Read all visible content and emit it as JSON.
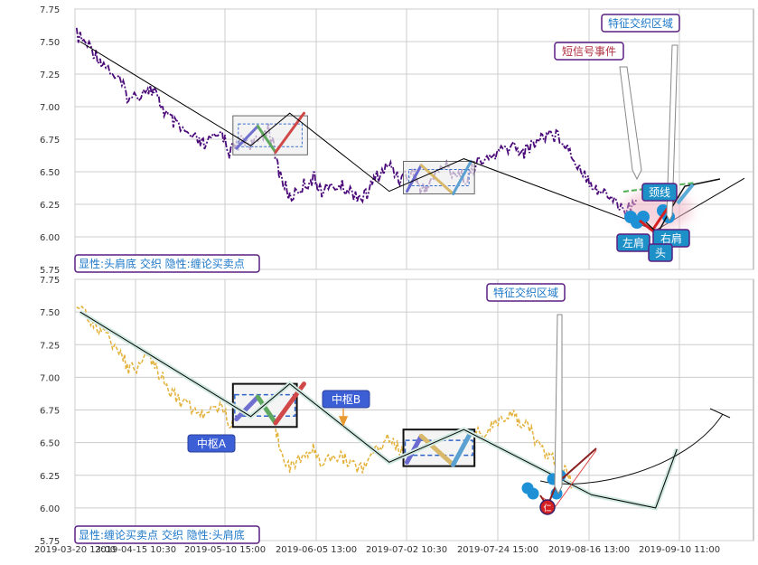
{
  "colors": {
    "upper_price": "#4b0a7a",
    "lower_price": "#e3b23c",
    "trend": "#000000",
    "grid": "#cccccc",
    "label_bg": "#1e90c8",
    "label_border": "#5a1e82",
    "zhongshu_bg": "#3d5fd6",
    "bubble": "#1e90d6",
    "signal_red": "#d42020"
  },
  "chart_data": [
    {
      "type": "line",
      "panel": "upper",
      "title": "",
      "ylim": [
        5.75,
        7.75
      ],
      "yticks": [
        "7.75",
        "7.50",
        "7.25",
        "7.00",
        "6.75",
        "6.50",
        "6.25",
        "6.00",
        "5.75"
      ],
      "x_domain": [
        "2019-03-20 13:00",
        "2019-09-27 13:00"
      ],
      "grid": true,
      "legend_box": "显性:头肩底 交织 隐性:缠论买卖点",
      "price_series": {
        "x": [
          "2019-03-21",
          "2019-03-25",
          "2019-03-28",
          "2019-04-02",
          "2019-04-05",
          "2019-04-10",
          "2019-04-12",
          "2019-04-15",
          "2019-04-18",
          "2019-04-23",
          "2019-04-26",
          "2019-05-01",
          "2019-05-03",
          "2019-05-07",
          "2019-05-10",
          "2019-05-14",
          "2019-05-17",
          "2019-05-20",
          "2019-05-24",
          "2019-05-27",
          "2019-05-29",
          "2019-06-03",
          "2019-06-06",
          "2019-06-10",
          "2019-06-13",
          "2019-06-17",
          "2019-06-20",
          "2019-06-24",
          "2019-06-26",
          "2019-06-28",
          "2019-07-02",
          "2019-07-05",
          "2019-07-09",
          "2019-07-11",
          "2019-07-15",
          "2019-07-18",
          "2019-07-22",
          "2019-07-25",
          "2019-07-29",
          "2019-08-01",
          "2019-08-05",
          "2019-08-08",
          "2019-08-12",
          "2019-08-15",
          "2019-08-19",
          "2019-08-22",
          "2019-08-26"
        ],
        "y": [
          7.55,
          7.45,
          7.35,
          7.2,
          7.05,
          7.15,
          7.1,
          6.95,
          6.85,
          6.75,
          6.7,
          6.8,
          6.65,
          6.75,
          6.7,
          6.85,
          6.5,
          6.3,
          6.4,
          6.45,
          6.35,
          6.4,
          6.35,
          6.3,
          6.45,
          6.55,
          6.45,
          6.5,
          6.35,
          6.4,
          6.55,
          6.5,
          6.45,
          6.55,
          6.6,
          6.65,
          6.7,
          6.65,
          6.75,
          6.8,
          6.75,
          6.6,
          6.45,
          6.35,
          6.3,
          6.2,
          6.25
        ]
      },
      "trend_points": {
        "x": [
          "2019-03-22",
          "2019-05-09",
          "2019-05-20",
          "2019-06-17",
          "2019-07-08",
          "2019-08-31",
          "2019-09-25"
        ],
        "y": [
          7.5,
          6.7,
          6.95,
          6.35,
          6.6,
          6.05,
          6.45
        ]
      },
      "zhongshu_boxes": [
        {
          "x0": "2019-05-04",
          "x1": "2019-05-25",
          "y0": 6.63,
          "y1": 6.93
        },
        {
          "x0": "2019-06-21",
          "x1": "2019-07-11",
          "y0": 6.33,
          "y1": 6.58
        }
      ],
      "annotations": {
        "feature_zone": "特征交织区域",
        "short_signal": "短信号事件",
        "neckline": "颈线",
        "left_shoulder": "左肩",
        "right_shoulder": "右肩",
        "head": "头"
      }
    },
    {
      "type": "line",
      "panel": "lower",
      "title": "",
      "ylim": [
        5.75,
        7.75
      ],
      "yticks": [
        "7.75",
        "7.50",
        "7.25",
        "7.00",
        "6.75",
        "6.50",
        "6.25",
        "6.00",
        "5.75"
      ],
      "xticks": [
        "2019-03-20 13:00",
        "2019-04-15 10:30",
        "2019-05-10 15:00",
        "2019-06-05 13:00",
        "2019-07-02 10:30",
        "2019-07-24 15:00",
        "2019-08-16 13:00",
        "2019-09-10 11:00"
      ],
      "x_domain": [
        "2019-03-20 13:00",
        "2019-09-27 13:00"
      ],
      "grid": true,
      "legend_box": "显性:缠论买卖点 交织 隐性:头肩底",
      "price_series": {
        "x": [
          "2019-03-21",
          "2019-03-25",
          "2019-03-28",
          "2019-04-02",
          "2019-04-05",
          "2019-04-10",
          "2019-04-12",
          "2019-04-15",
          "2019-04-18",
          "2019-04-23",
          "2019-04-26",
          "2019-05-01",
          "2019-05-03",
          "2019-05-07",
          "2019-05-10",
          "2019-05-14",
          "2019-05-17",
          "2019-05-20",
          "2019-05-24",
          "2019-05-27",
          "2019-05-29",
          "2019-06-03",
          "2019-06-06",
          "2019-06-10",
          "2019-06-13",
          "2019-06-17",
          "2019-06-20",
          "2019-06-24",
          "2019-06-26",
          "2019-06-28",
          "2019-07-02",
          "2019-07-05",
          "2019-07-09",
          "2019-07-11",
          "2019-07-15",
          "2019-07-18",
          "2019-07-22",
          "2019-07-25",
          "2019-07-29",
          "2019-08-01",
          "2019-08-05",
          "2019-08-08"
        ],
        "y": [
          7.55,
          7.45,
          7.35,
          7.2,
          7.05,
          7.15,
          7.1,
          6.95,
          6.85,
          6.75,
          6.7,
          6.8,
          6.65,
          6.75,
          6.7,
          6.85,
          6.5,
          6.3,
          6.4,
          6.45,
          6.35,
          6.4,
          6.35,
          6.3,
          6.45,
          6.55,
          6.45,
          6.5,
          6.35,
          6.4,
          6.55,
          6.5,
          6.45,
          6.55,
          6.6,
          6.65,
          6.7,
          6.65,
          6.5,
          6.4,
          6.3,
          6.15
        ]
      },
      "trend_points": {
        "x": [
          "2019-03-22",
          "2019-05-09",
          "2019-05-20",
          "2019-06-17",
          "2019-07-08",
          "2019-08-13",
          "2019-08-31",
          "2019-09-06"
        ],
        "y": [
          7.5,
          6.7,
          6.95,
          6.35,
          6.6,
          6.1,
          6.0,
          6.45
        ]
      },
      "zhongshu_boxes": [
        {
          "x0": "2019-05-04",
          "x1": "2019-05-22",
          "y0": 6.62,
          "y1": 6.95
        },
        {
          "x0": "2019-06-21",
          "x1": "2019-07-11",
          "y0": 6.32,
          "y1": 6.6
        }
      ],
      "annotations": {
        "feature_zone": "特征交织区域",
        "zhongshu_a": "中枢A",
        "zhongshu_b": "中枢B",
        "buy_point": "仁"
      }
    }
  ]
}
